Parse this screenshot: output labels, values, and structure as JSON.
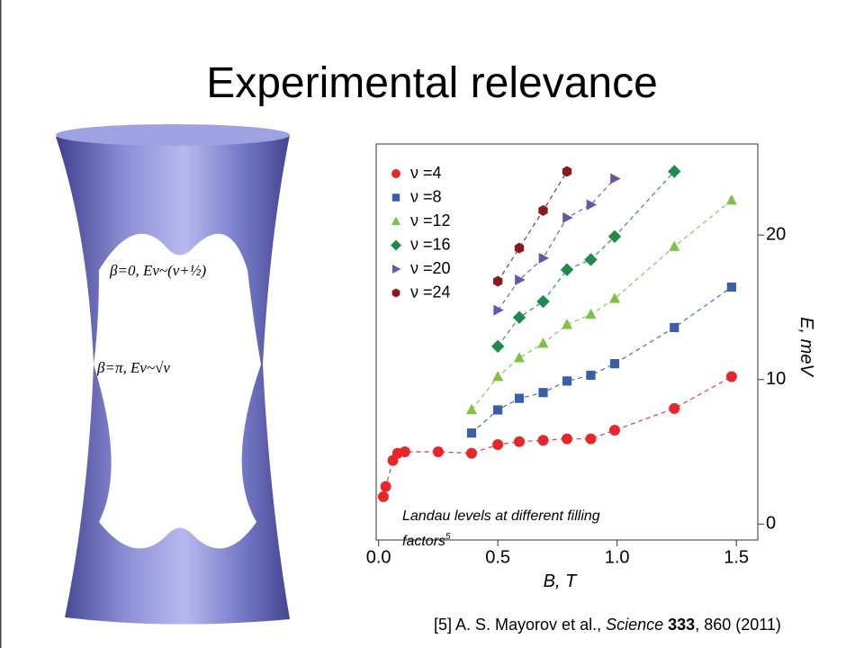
{
  "slide": {
    "title": "Experimental relevance",
    "annotations": [
      "β=0, Eν~(ν+½)",
      "β=π, Eν~√ν"
    ],
    "caption": [
      "Landau levels at different filling",
      "factors"
    ],
    "caption_ref": "5",
    "reference": [
      "[5] A. S. Mayorov et al., ",
      "Science",
      " 333",
      ", 860 (2011)"
    ]
  },
  "chart_data": {
    "type": "scatter",
    "xlabel": "B, T",
    "ylabel": "E, meV",
    "xlim": [
      -0.01,
      1.59
    ],
    "ylim": [
      -1.1,
      26.3
    ],
    "xticks": [
      {
        "value": 0,
        "label": "0.0"
      },
      0.5,
      {
        "value": 1,
        "label": "1.0"
      },
      1.5
    ],
    "yticks": [
      0,
      10,
      20
    ],
    "legend": "upper left",
    "series": [
      {
        "name": "ν =4",
        "color": "#e8262a",
        "marker": "circle",
        "x": [
          0.02,
          0.03,
          0.06,
          0.08,
          0.11,
          0.25,
          0.39,
          0.5,
          0.59,
          0.69,
          0.79,
          0.89,
          0.99,
          1.24,
          1.48
        ],
        "values": [
          1.9,
          2.6,
          4.4,
          4.9,
          5.0,
          5.0,
          4.9,
          5.5,
          5.7,
          5.8,
          5.9,
          5.9,
          6.5,
          8.0,
          10.2
        ]
      },
      {
        "name": "ν =8",
        "color": "#3a5ea8",
        "marker": "square",
        "x": [
          0.39,
          0.5,
          0.59,
          0.69,
          0.79,
          0.89,
          0.99,
          1.24,
          1.48
        ],
        "values": [
          6.3,
          7.9,
          8.7,
          9.1,
          9.9,
          10.3,
          11.1,
          13.6,
          16.4
        ]
      },
      {
        "name": "ν =12",
        "color": "#7dc242",
        "marker": "triangle",
        "x": [
          0.39,
          0.5,
          0.59,
          0.69,
          0.79,
          0.89,
          0.99,
          1.24,
          1.48
        ],
        "values": [
          7.9,
          10.2,
          11.5,
          12.5,
          13.8,
          14.5,
          15.6,
          19.2,
          22.4
        ]
      },
      {
        "name": "ν =16",
        "color": "#1f8a4c",
        "marker": "diamond",
        "x": [
          0.5,
          0.59,
          0.69,
          0.79,
          0.89,
          0.99,
          1.24
        ],
        "values": [
          12.3,
          14.3,
          15.4,
          17.6,
          18.3,
          19.9,
          24.4
        ]
      },
      {
        "name": "ν =20",
        "color": "#6a55a0",
        "marker": "right-triangle",
        "x": [
          0.5,
          0.59,
          0.69,
          0.79,
          0.89,
          0.99
        ],
        "values": [
          14.8,
          16.9,
          18.4,
          21.2,
          22.1,
          23.9
        ]
      },
      {
        "name": "ν =24",
        "color": "#8b1a1f",
        "marker": "hexagon",
        "x": [
          0.5,
          0.59,
          0.69,
          0.79
        ],
        "values": [
          16.8,
          19.1,
          21.7,
          24.4
        ]
      }
    ]
  }
}
